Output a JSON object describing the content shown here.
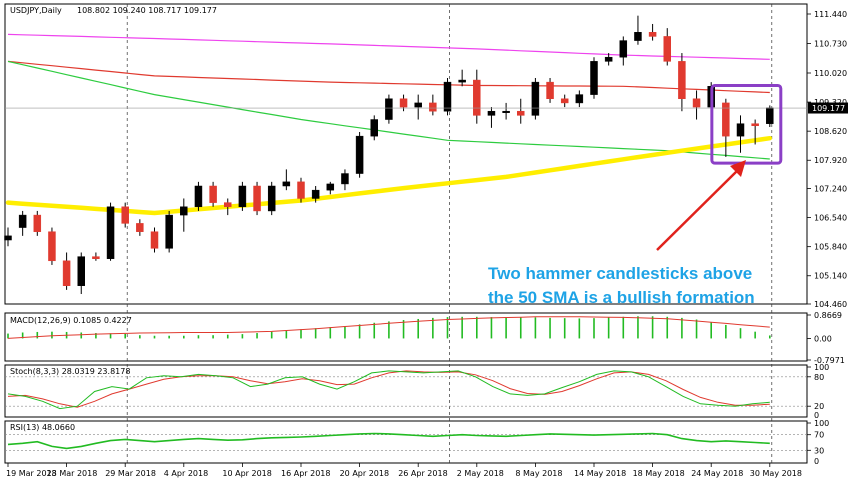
{
  "header": {
    "symbol_label": "USDJPY,Daily",
    "ohlc_label": "108.802 109.240 108.717 109.177"
  },
  "colors": {
    "bull": "#000000",
    "bear": "#e03a2f",
    "sma50": "#ffee00",
    "sma100": "#2ecc40",
    "sma200_red": "#e03a2f",
    "sma_magenta": "#ee44ee",
    "annotation": "#1ea3e6",
    "highlight_box": "#8b3fc6",
    "arrow": "#e0221c",
    "indicator_green": "#22bb22"
  },
  "chart_data": [
    {
      "type": "candlestick",
      "name": "price",
      "ylim": [
        104.46,
        111.44
      ],
      "y_ticks": [
        "111.440",
        "110.730",
        "110.020",
        "109.320",
        "108.620",
        "107.920",
        "107.240",
        "106.540",
        "105.840",
        "105.140",
        "104.460"
      ],
      "current_price": "109.177",
      "x_tick_labels": [
        "19 Mar 2018",
        "23 Mar 2018",
        "29 Mar 2018",
        "4 Apr 2018",
        "10 Apr 2018",
        "16 Apr 2018",
        "20 Apr 2018",
        "26 Apr 2018",
        "2 May 2018",
        "8 May 2018",
        "14 May 2018",
        "18 May 2018",
        "24 May 2018",
        "30 May 2018"
      ],
      "x_tick_index": [
        0,
        4,
        8,
        12,
        16,
        20,
        24,
        28,
        32,
        36,
        40,
        44,
        48,
        52
      ],
      "candles": [
        {
          "o": 106.0,
          "h": 106.3,
          "l": 105.85,
          "c": 106.1
        },
        {
          "o": 106.3,
          "h": 106.7,
          "l": 106.1,
          "c": 106.6
        },
        {
          "o": 106.6,
          "h": 106.7,
          "l": 106.1,
          "c": 106.2
        },
        {
          "o": 106.2,
          "h": 106.3,
          "l": 105.4,
          "c": 105.5
        },
        {
          "o": 105.5,
          "h": 105.7,
          "l": 104.8,
          "c": 104.9
        },
        {
          "o": 104.9,
          "h": 105.7,
          "l": 104.7,
          "c": 105.6
        },
        {
          "o": 105.6,
          "h": 105.7,
          "l": 105.5,
          "c": 105.55
        },
        {
          "o": 105.55,
          "h": 106.9,
          "l": 105.5,
          "c": 106.8
        },
        {
          "o": 106.8,
          "h": 106.9,
          "l": 106.3,
          "c": 106.4
        },
        {
          "o": 106.4,
          "h": 106.5,
          "l": 106.1,
          "c": 106.2
        },
        {
          "o": 106.2,
          "h": 106.3,
          "l": 105.7,
          "c": 105.8
        },
        {
          "o": 105.8,
          "h": 106.7,
          "l": 105.7,
          "c": 106.6
        },
        {
          "o": 106.6,
          "h": 107.0,
          "l": 106.2,
          "c": 106.8
        },
        {
          "o": 106.8,
          "h": 107.4,
          "l": 106.7,
          "c": 107.3
        },
        {
          "o": 107.3,
          "h": 107.4,
          "l": 106.8,
          "c": 106.9
        },
        {
          "o": 106.9,
          "h": 107.0,
          "l": 106.6,
          "c": 106.8
        },
        {
          "o": 106.8,
          "h": 107.4,
          "l": 106.7,
          "c": 107.3
        },
        {
          "o": 107.3,
          "h": 107.4,
          "l": 106.6,
          "c": 106.7
        },
        {
          "o": 106.7,
          "h": 107.4,
          "l": 106.6,
          "c": 107.3
        },
        {
          "o": 107.3,
          "h": 107.7,
          "l": 107.2,
          "c": 107.4
        },
        {
          "o": 107.4,
          "h": 107.5,
          "l": 106.9,
          "c": 107.0
        },
        {
          "o": 107.0,
          "h": 107.3,
          "l": 106.9,
          "c": 107.2
        },
        {
          "o": 107.2,
          "h": 107.4,
          "l": 107.1,
          "c": 107.35
        },
        {
          "o": 107.35,
          "h": 107.7,
          "l": 107.2,
          "c": 107.6
        },
        {
          "o": 107.6,
          "h": 108.6,
          "l": 107.5,
          "c": 108.5
        },
        {
          "o": 108.5,
          "h": 109.0,
          "l": 108.4,
          "c": 108.9
        },
        {
          "o": 108.9,
          "h": 109.5,
          "l": 108.8,
          "c": 109.4
        },
        {
          "o": 109.4,
          "h": 109.5,
          "l": 109.1,
          "c": 109.2
        },
        {
          "o": 109.2,
          "h": 109.5,
          "l": 108.9,
          "c": 109.3
        },
        {
          "o": 109.3,
          "h": 109.5,
          "l": 109.0,
          "c": 109.1
        },
        {
          "o": 109.1,
          "h": 109.9,
          "l": 109.0,
          "c": 109.8
        },
        {
          "o": 109.8,
          "h": 110.1,
          "l": 109.7,
          "c": 109.85
        },
        {
          "o": 109.85,
          "h": 110.1,
          "l": 108.8,
          "c": 109.0
        },
        {
          "o": 109.0,
          "h": 109.2,
          "l": 108.7,
          "c": 109.1
        },
        {
          "o": 109.1,
          "h": 109.3,
          "l": 108.9,
          "c": 109.1
        },
        {
          "o": 109.1,
          "h": 109.4,
          "l": 108.8,
          "c": 109.0
        },
        {
          "o": 109.0,
          "h": 109.9,
          "l": 108.9,
          "c": 109.8
        },
        {
          "o": 109.8,
          "h": 109.9,
          "l": 109.3,
          "c": 109.4
        },
        {
          "o": 109.4,
          "h": 109.5,
          "l": 109.2,
          "c": 109.3
        },
        {
          "o": 109.3,
          "h": 109.6,
          "l": 109.2,
          "c": 109.5
        },
        {
          "o": 109.5,
          "h": 110.4,
          "l": 109.4,
          "c": 110.3
        },
        {
          "o": 110.3,
          "h": 110.5,
          "l": 110.2,
          "c": 110.4
        },
        {
          "o": 110.4,
          "h": 110.9,
          "l": 110.2,
          "c": 110.8
        },
        {
          "o": 110.8,
          "h": 111.4,
          "l": 110.7,
          "c": 111.0
        },
        {
          "o": 111.0,
          "h": 111.2,
          "l": 110.8,
          "c": 110.9
        },
        {
          "o": 110.9,
          "h": 111.1,
          "l": 110.2,
          "c": 110.3
        },
        {
          "o": 110.3,
          "h": 110.5,
          "l": 109.1,
          "c": 109.4
        },
        {
          "o": 109.4,
          "h": 109.6,
          "l": 108.9,
          "c": 109.2
        },
        {
          "o": 109.2,
          "h": 109.8,
          "l": 109.0,
          "c": 109.7
        },
        {
          "o": 109.3,
          "h": 109.4,
          "l": 108.0,
          "c": 108.5
        },
        {
          "o": 108.5,
          "h": 109.0,
          "l": 108.1,
          "c": 108.8
        },
        {
          "o": 108.8,
          "h": 108.9,
          "l": 108.3,
          "c": 108.75
        },
        {
          "o": 108.8,
          "h": 109.24,
          "l": 108.72,
          "c": 109.18
        }
      ],
      "sma50": [
        106.9,
        106.65,
        106.95,
        107.25,
        107.52,
        108.1,
        108.45
      ],
      "sma50_idx": [
        0,
        10,
        20,
        27,
        34,
        45,
        52
      ],
      "sma100": [
        110.3,
        109.5,
        108.9,
        108.4,
        108.15,
        107.95
      ],
      "sma100_idx": [
        0,
        10,
        20,
        30,
        45,
        52
      ],
      "sma_red": [
        110.3,
        109.95,
        109.8,
        109.72,
        109.7,
        109.55
      ],
      "sma_red_idx": [
        0,
        10,
        22,
        32,
        42,
        52
      ],
      "sma_magenta": [
        110.95,
        110.85,
        110.72,
        110.6,
        110.45,
        110.35
      ],
      "sma_magenta_idx": [
        0,
        10,
        22,
        32,
        42,
        52
      ],
      "annotation": {
        "line1": "Two hammer candlesticks above",
        "line2": "the 50 SMA is a bullish formation"
      }
    },
    {
      "type": "bar",
      "name": "MACD",
      "label": "MACD(12,26,9) 0.1085 0.4227",
      "y_ticks": [
        "0.8669",
        "0.00",
        "-0.7971"
      ],
      "ylim": [
        -0.7971,
        0.8669
      ],
      "histogram": [
        0.18,
        0.22,
        0.24,
        0.25,
        0.24,
        0.22,
        0.2,
        0.19,
        0.17,
        0.12,
        0.1,
        0.1,
        0.1,
        0.12,
        0.12,
        0.14,
        0.16,
        0.2,
        0.25,
        0.3,
        0.34,
        0.38,
        0.42,
        0.46,
        0.52,
        0.58,
        0.63,
        0.68,
        0.72,
        0.76,
        0.79,
        0.8,
        0.8,
        0.79,
        0.78,
        0.78,
        0.78,
        0.76,
        0.75,
        0.74,
        0.75,
        0.78,
        0.8,
        0.82,
        0.82,
        0.8,
        0.76,
        0.7,
        0.6,
        0.5,
        0.38,
        0.25,
        0.11
      ],
      "signal": [
        0.0,
        0.1,
        0.16,
        0.2,
        0.22,
        0.22,
        0.26,
        0.36,
        0.48,
        0.6,
        0.7,
        0.76,
        0.8,
        0.8,
        0.78,
        0.73,
        0.6,
        0.42
      ],
      "signal_idx": [
        0,
        3,
        6,
        9,
        12,
        15,
        18,
        21,
        24,
        27,
        30,
        33,
        36,
        39,
        42,
        45,
        48,
        52
      ]
    },
    {
      "type": "line",
      "name": "Stoch",
      "label": "Stoch(8,3,3) 28.0319 23.8178",
      "y_ticks": [
        "100",
        "80",
        "20",
        "0"
      ],
      "ylim": [
        0,
        100
      ],
      "k": [
        45,
        40,
        30,
        15,
        20,
        50,
        60,
        55,
        78,
        82,
        80,
        85,
        82,
        78,
        60,
        65,
        78,
        80,
        65,
        55,
        70,
        88,
        92,
        90,
        88,
        90,
        92,
        80,
        60,
        45,
        42,
        45,
        58,
        70,
        85,
        92,
        90,
        80,
        60,
        40,
        25,
        22,
        20,
        25,
        28
      ],
      "d": [
        40,
        42,
        35,
        25,
        18,
        30,
        45,
        55,
        65,
        75,
        80,
        82,
        82,
        80,
        72,
        66,
        70,
        76,
        72,
        64,
        65,
        78,
        88,
        92,
        90,
        89,
        90,
        84,
        72,
        56,
        46,
        44,
        50,
        62,
        76,
        88,
        90,
        85,
        72,
        54,
        38,
        28,
        22,
        22,
        24
      ],
      "x_idx_end": 52
    },
    {
      "type": "line",
      "name": "RSI",
      "label": "RSI(13) 48.0660",
      "y_ticks": [
        "100",
        "70",
        "30",
        "0"
      ],
      "ylim": [
        0,
        100
      ],
      "values": [
        45,
        48,
        52,
        40,
        35,
        40,
        48,
        55,
        58,
        55,
        52,
        55,
        58,
        60,
        58,
        56,
        57,
        60,
        62,
        63,
        64,
        66,
        68,
        70,
        72,
        73,
        72,
        70,
        68,
        66,
        68,
        70,
        68,
        67,
        66,
        68,
        70,
        72,
        71,
        70,
        69,
        70,
        71,
        72,
        73,
        70,
        60,
        55,
        52,
        54,
        52,
        50,
        48
      ],
      "x_idx_end": 52
    }
  ]
}
